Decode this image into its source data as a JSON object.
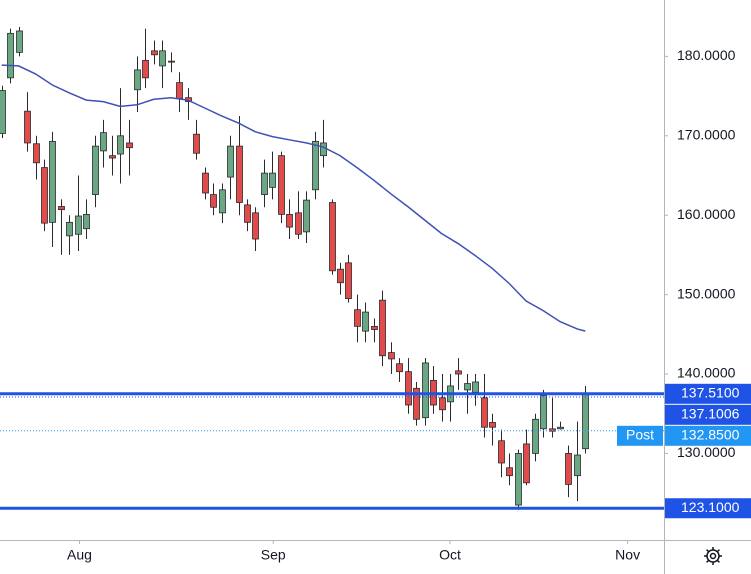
{
  "chart_data": {
    "type": "candlestick",
    "up_color": "#6aa784",
    "down_color": "#e04b4b",
    "outline_color": "#2b2b2b",
    "open": [
      170.3,
      177.3,
      180.5,
      173.1,
      169,
      166,
      159.1,
      161.1,
      157.4,
      157.6,
      158.3,
      162.6,
      168.1,
      167.5,
      167.7,
      169.1,
      175.8,
      179.5,
      180.7,
      178.8,
      179.4,
      176.7,
      174.8,
      170.2,
      165.3,
      162.6,
      160.3,
      164.8,
      168.7,
      161.3,
      160.3,
      162.6,
      163.5,
      167.5,
      160.1,
      160.3,
      157.9,
      163.2,
      167.5,
      161.6,
      153.2,
      154,
      148.1,
      145.4,
      146,
      149.3,
      142.7,
      141.3,
      140.3,
      138.2,
      134.5,
      139.2,
      137,
      136.5,
      140.4,
      138,
      137.7,
      137,
      133.9,
      131.6,
      128.2,
      123.5,
      131.2,
      130,
      133.1,
      133.1,
      133.1,
      130,
      127.2,
      130.6
    ],
    "high": [
      176.3,
      183.5,
      183.7,
      175.5,
      170,
      167,
      170.5,
      162,
      160,
      165,
      162,
      170,
      172,
      170,
      176,
      172,
      180,
      183.5,
      182,
      182,
      180.5,
      178,
      176,
      172,
      166,
      164,
      164,
      170,
      172.5,
      162,
      161,
      167,
      168,
      168,
      162,
      163,
      163,
      170.5,
      172,
      162,
      154,
      155,
      150,
      149,
      147,
      150.5,
      144,
      142,
      142,
      139,
      142,
      141,
      140,
      140,
      142,
      140,
      140,
      140,
      135,
      133,
      130,
      130.5,
      133,
      135,
      138,
      137,
      134,
      131,
      134,
      138.5
    ],
    "low": [
      169.7,
      176.6,
      180,
      168,
      164.5,
      158,
      156,
      155,
      155,
      155.5,
      157,
      161,
      166,
      165,
      164,
      165,
      173,
      176,
      179,
      176,
      178,
      173,
      172,
      167,
      162,
      160,
      159,
      162,
      160,
      158,
      155.5,
      161,
      162,
      159,
      157,
      157,
      156.5,
      162,
      166,
      152.5,
      150,
      149,
      144,
      144,
      144,
      141,
      140,
      139,
      135,
      133.5,
      133.5,
      135,
      134,
      134,
      138,
      135,
      136,
      132,
      131,
      127,
      126,
      122.9,
      126,
      129,
      132,
      132,
      133,
      124.5,
      124,
      130
    ],
    "close": [
      175.7,
      182.9,
      183.2,
      169.1,
      166.6,
      159,
      169.3,
      160.7,
      159.1,
      159.9,
      160.1,
      168.7,
      170.4,
      167.2,
      170,
      168.5,
      178.3,
      177.3,
      180.2,
      180.7,
      179.3,
      174.7,
      174.3,
      167.8,
      162.8,
      161,
      163.2,
      168.7,
      161.6,
      159.1,
      157,
      165.3,
      165.3,
      160.1,
      158.5,
      157.6,
      161.9,
      169.3,
      169.1,
      153,
      151.5,
      149.5,
      146,
      147.8,
      145.6,
      142.3,
      141.9,
      140.3,
      136.1,
      134.3,
      141.4,
      136.1,
      135.5,
      138.5,
      140,
      138.8,
      139,
      133.3,
      133.3,
      128.8,
      127.2,
      130,
      126.3,
      134.3,
      137.3,
      132.8,
      133.3,
      126.1,
      129.8,
      137.4
    ],
    "ma": {
      "color": "#3f51b5",
      "x": [
        0,
        2,
        4,
        6,
        8,
        10,
        12,
        14,
        16,
        18,
        20,
        22,
        24,
        26,
        28,
        30,
        32,
        34,
        36,
        38,
        40,
        42,
        44,
        46,
        48,
        50,
        52,
        54,
        56,
        58,
        60,
        62,
        64,
        66,
        68,
        69
      ],
      "values": [
        178.9,
        178.8,
        177.8,
        176.4,
        175.4,
        174.5,
        174.3,
        173.7,
        173.9,
        174.6,
        174.8,
        174.5,
        173.5,
        172.5,
        171.6,
        170.5,
        169.9,
        169.5,
        169.1,
        168.6,
        167.5,
        166,
        164.4,
        162.7,
        161.1,
        159.4,
        157.7,
        156.4,
        154.9,
        153.3,
        151.4,
        149.2,
        148,
        146.6,
        145.7,
        145.4
      ]
    },
    "xlim": [
      -0.2,
      78.3
    ],
    "ylim": [
      119.1,
      187.1
    ],
    "xticks": [
      {
        "value": 9.2,
        "label": "Aug"
      },
      {
        "value": 32.1,
        "label": "Sep"
      },
      {
        "value": 53,
        "label": "Oct"
      },
      {
        "value": 74,
        "label": "Nov"
      }
    ],
    "yticks": [
      {
        "value": 130,
        "label": "130.0000"
      },
      {
        "value": 140,
        "label": "140.0000"
      },
      {
        "value": 150,
        "label": "150.0000"
      },
      {
        "value": 160,
        "label": "160.0000"
      },
      {
        "value": 170,
        "label": "170.0000"
      },
      {
        "value": 180,
        "label": "180.0000"
      }
    ],
    "levels": [
      {
        "value": 137.51,
        "label": "137.5100",
        "color": "#1e53e5",
        "style": "solid"
      },
      {
        "value": 137.1006,
        "label": "137.1006",
        "color": "#1e53e5",
        "style": "dotted"
      },
      {
        "value": 132.85,
        "label": "132.8500",
        "tag": "Post",
        "color": "#2196f3",
        "style": "dotted"
      },
      {
        "value": 123.1,
        "label": "123.1000",
        "color": "#1e53e5",
        "style": "solid"
      }
    ]
  }
}
